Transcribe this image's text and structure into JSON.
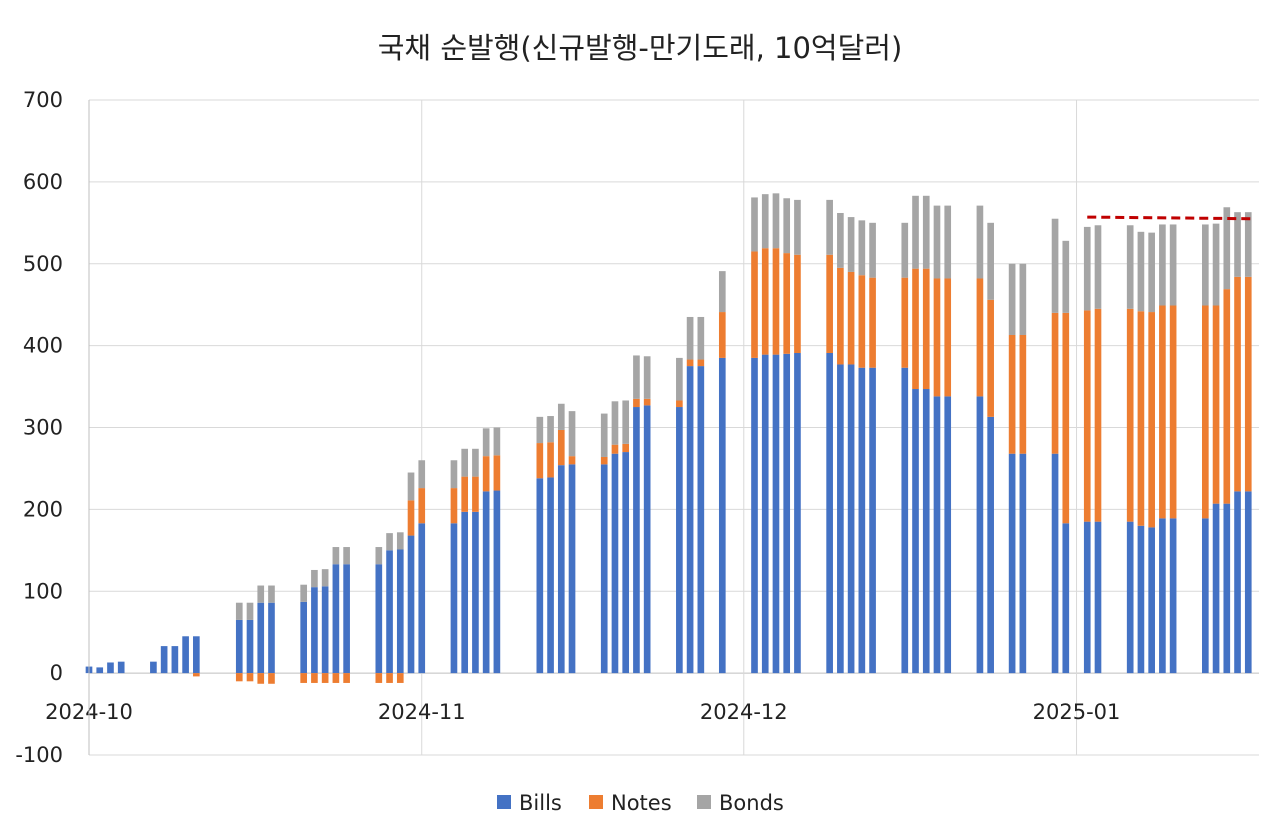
{
  "chart_data": {
    "type": "bar",
    "stacked": true,
    "title": "국채 순발행(신규발행-만기도래, 10억달러)",
    "xlabel": "",
    "ylabel": "",
    "ylim": [
      -100,
      700
    ],
    "yticks": [
      700,
      600,
      500,
      400,
      300,
      200,
      100,
      0,
      -100
    ],
    "grid": true,
    "legend_position": "bottom",
    "x_tick_labels": [
      "2024-10",
      "2024-11",
      "2024-12",
      "2025-01"
    ],
    "x_tick_dates": [
      "2024-10-01",
      "2024-11-01",
      "2024-12-01",
      "2025-01-01"
    ],
    "x_range": [
      "2024-10-01",
      "2025-01-17"
    ],
    "dates": [
      "2024-10-01",
      "2024-10-02",
      "2024-10-03",
      "2024-10-04",
      "2024-10-07",
      "2024-10-08",
      "2024-10-09",
      "2024-10-10",
      "2024-10-11",
      "2024-10-15",
      "2024-10-16",
      "2024-10-17",
      "2024-10-18",
      "2024-10-21",
      "2024-10-22",
      "2024-10-23",
      "2024-10-24",
      "2024-10-25",
      "2024-10-28",
      "2024-10-29",
      "2024-10-30",
      "2024-10-31",
      "2024-11-01",
      "2024-11-04",
      "2024-11-05",
      "2024-11-06",
      "2024-11-07",
      "2024-11-08",
      "2024-11-12",
      "2024-11-13",
      "2024-11-14",
      "2024-11-15",
      "2024-11-18",
      "2024-11-19",
      "2024-11-20",
      "2024-11-21",
      "2024-11-22",
      "2024-11-25",
      "2024-11-26",
      "2024-11-27",
      "2024-11-29",
      "2024-12-02",
      "2024-12-03",
      "2024-12-04",
      "2024-12-05",
      "2024-12-06",
      "2024-12-09",
      "2024-12-10",
      "2024-12-11",
      "2024-12-12",
      "2024-12-13",
      "2024-12-16",
      "2024-12-17",
      "2024-12-18",
      "2024-12-19",
      "2024-12-20",
      "2024-12-23",
      "2024-12-24",
      "2024-12-26",
      "2024-12-27",
      "2024-12-30",
      "2024-12-31",
      "2025-01-02",
      "2025-01-03",
      "2025-01-06",
      "2025-01-07",
      "2025-01-08",
      "2025-01-09",
      "2025-01-10",
      "2025-01-13",
      "2025-01-14",
      "2025-01-15",
      "2025-01-16",
      "2025-01-17"
    ],
    "series": [
      {
        "name": "Bills",
        "color": "#4472C4",
        "values": [
          8,
          7,
          13,
          14,
          14,
          33,
          33,
          45,
          45,
          65,
          65,
          86,
          86,
          87,
          105,
          106,
          133,
          133,
          133,
          150,
          151,
          168,
          183,
          183,
          197,
          197,
          222,
          223,
          238,
          239,
          254,
          255,
          255,
          268,
          270,
          325,
          327,
          325,
          375,
          375,
          385,
          385,
          389,
          389,
          390,
          391,
          391,
          377,
          377,
          373,
          373,
          373,
          347,
          347,
          338,
          338,
          338,
          313,
          268,
          268,
          268,
          183,
          185,
          185,
          185,
          180,
          178,
          189,
          189,
          189,
          207,
          207,
          222,
          222
        ]
      },
      {
        "name": "Notes",
        "color": "#ED7D31",
        "values": [
          0,
          0,
          0,
          0,
          0,
          0,
          0,
          0,
          -4,
          -10,
          -10,
          -13,
          -13,
          -12,
          -12,
          -12,
          -12,
          -12,
          -12,
          -12,
          -12,
          43,
          43,
          43,
          43,
          43,
          43,
          43,
          43,
          43,
          43,
          10,
          9,
          11,
          10,
          10,
          8,
          8,
          8,
          8,
          56,
          130,
          130,
          130,
          123,
          120,
          120,
          118,
          113,
          113,
          110,
          110,
          147,
          147,
          144,
          144,
          144,
          143,
          145,
          145,
          172,
          257,
          258,
          260,
          260,
          262,
          263,
          260,
          260,
          260,
          242,
          262,
          262,
          262
        ]
      },
      {
        "name": "Bonds",
        "color": "#A5A5A5",
        "values": [
          0,
          0,
          0,
          0,
          0,
          0,
          0,
          0,
          0,
          21,
          21,
          21,
          21,
          21,
          21,
          21,
          21,
          21,
          21,
          21,
          21,
          34,
          34,
          34,
          34,
          34,
          34,
          34,
          32,
          32,
          32,
          55,
          53,
          53,
          53,
          53,
          52,
          52,
          52,
          52,
          50,
          66,
          66,
          67,
          67,
          67,
          67,
          67,
          67,
          67,
          67,
          67,
          89,
          89,
          89,
          89,
          89,
          94,
          87,
          87,
          115,
          88,
          102,
          102,
          102,
          97,
          97,
          99,
          99,
          99,
          100,
          100,
          79,
          79
        ]
      }
    ],
    "reference_line": {
      "color": "#C00000",
      "style": "dashed",
      "from": "2025-01-02",
      "to": "2025-01-17",
      "y_start": 557,
      "y_end": 555
    }
  }
}
